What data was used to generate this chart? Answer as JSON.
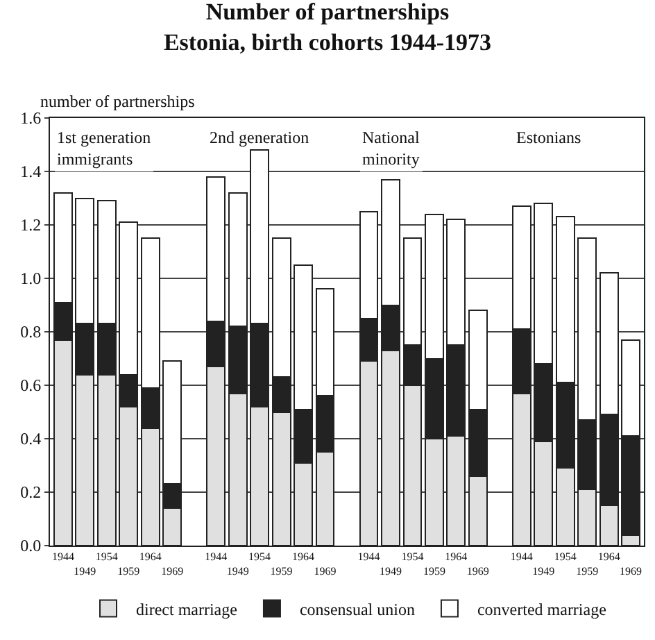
{
  "chart_data": {
    "type": "bar",
    "stacked": true,
    "title": "Number of partnerships\nEstonia, birth cohorts 1944-1973",
    "ylabel": "number of partnerships",
    "categories": [
      "1944",
      "1949",
      "1954",
      "1959",
      "1964",
      "1969",
      null,
      "1944",
      "1949",
      "1954",
      "1959",
      "1964",
      "1969",
      null,
      "1944",
      "1949",
      "1954",
      "1959",
      "1964",
      "1969",
      null,
      "1944",
      "1949",
      "1954",
      "1959",
      "1964",
      "1969"
    ],
    "series": [
      {
        "name": "direct marriage",
        "color": "#e0e0e0",
        "values": [
          0.77,
          0.64,
          0.64,
          0.52,
          0.44,
          0.14,
          null,
          0.67,
          0.57,
          0.52,
          0.5,
          0.31,
          0.35,
          null,
          0.69,
          0.73,
          0.6,
          0.4,
          0.41,
          0.26,
          null,
          0.57,
          0.39,
          0.29,
          0.21,
          0.15,
          0.04
        ]
      },
      {
        "name": "consensual union",
        "color": "#222222",
        "values": [
          0.14,
          0.19,
          0.19,
          0.12,
          0.15,
          0.09,
          null,
          0.17,
          0.25,
          0.31,
          0.13,
          0.2,
          0.21,
          null,
          0.16,
          0.17,
          0.15,
          0.3,
          0.34,
          0.25,
          null,
          0.24,
          0.29,
          0.32,
          0.26,
          0.34,
          0.37
        ]
      },
      {
        "name": "converted marriage",
        "color": "#ffffff",
        "values": [
          0.41,
          0.47,
          0.46,
          0.57,
          0.56,
          0.46,
          null,
          0.54,
          0.5,
          0.65,
          0.52,
          0.54,
          0.4,
          null,
          0.4,
          0.47,
          0.4,
          0.54,
          0.47,
          0.37,
          null,
          0.46,
          0.6,
          0.62,
          0.68,
          0.53,
          0.36
        ]
      }
    ],
    "annotations": [
      "1st generation\nimmigrants",
      "2nd generation",
      "National\nminority",
      "Estonians"
    ],
    "ylim": [
      0,
      1.6
    ],
    "yticks": [
      {
        "value": 0,
        "label": "0.0"
      },
      {
        "value": 0.2,
        "label": "0.2"
      },
      {
        "value": 0.4,
        "label": "0.4"
      },
      {
        "value": 0.6,
        "label": "0.6"
      },
      {
        "value": 0.8,
        "label": "0.8"
      },
      {
        "value": 1.0,
        "label": "1.0"
      },
      {
        "value": 1.2,
        "label": "1.2"
      },
      {
        "value": 1.4,
        "label": "1.4"
      },
      {
        "value": 1.6,
        "label": "1.6"
      }
    ],
    "grid": "y",
    "legend": "bottom"
  }
}
